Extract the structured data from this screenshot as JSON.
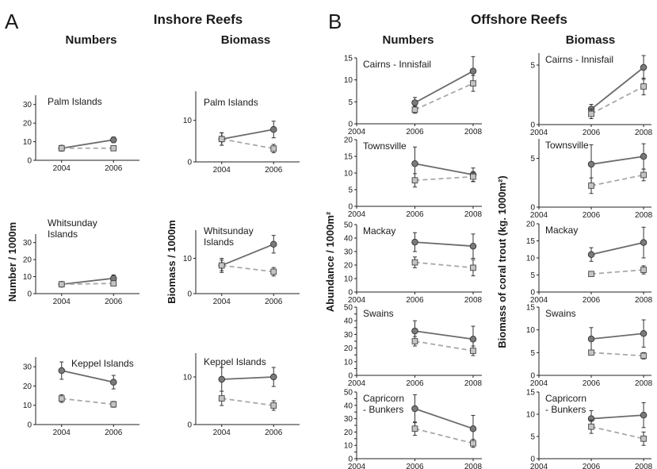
{
  "labels": {
    "panel_a": "A",
    "panel_b": "B",
    "title_a": "Inshore Reefs",
    "title_b": "Offshore Reefs",
    "col_numbers": "Numbers",
    "col_biomass": "Biomass",
    "ylabel_a_numbers": "Number / 1000m",
    "ylabel_a_biomass": "Biomass / 1000m",
    "ylabel_b_numbers": "Abundance / 1000m²",
    "ylabel_b_biomass": "Biomass of coral trout (kg. 1000m²)"
  },
  "colors": {
    "series_1": "#6b6b6b",
    "series_2": "#a8a8a8"
  },
  "chart_data": [
    {
      "type": "line",
      "panel": "A",
      "column": "Numbers",
      "region": "Palm Islands",
      "x": [
        2004,
        2006
      ],
      "ylim": [
        0,
        35
      ],
      "yticks": [
        0,
        10,
        20,
        30
      ],
      "series": [
        {
          "values": [
            6.5,
            11
          ],
          "err": [
            1.5,
            1.5
          ],
          "marker": "circle",
          "style": "solid"
        },
        {
          "values": [
            6.5,
            6.5
          ],
          "err": [
            1,
            1
          ],
          "marker": "square",
          "style": "dashed"
        }
      ]
    },
    {
      "type": "line",
      "panel": "A",
      "column": "Biomass",
      "region": "Palm Islands",
      "x": [
        2004,
        2006
      ],
      "ylim": [
        0,
        17
      ],
      "yticks": [
        0,
        10
      ],
      "series": [
        {
          "values": [
            5.5,
            7.8
          ],
          "err": [
            1.5,
            2
          ],
          "marker": "circle",
          "style": "solid"
        },
        {
          "values": [
            5.5,
            3.2
          ],
          "err": [
            1.5,
            1
          ],
          "marker": "square",
          "style": "dashed"
        }
      ]
    },
    {
      "type": "line",
      "panel": "A",
      "column": "Numbers",
      "region": "Whitsunday Islands",
      "x": [
        2004,
        2006
      ],
      "ylim": [
        0,
        35
      ],
      "yticks": [
        0,
        10,
        20,
        30
      ],
      "series": [
        {
          "values": [
            5.5,
            9
          ],
          "err": [
            1.5,
            2
          ],
          "marker": "circle",
          "style": "solid"
        },
        {
          "values": [
            5.5,
            6
          ],
          "err": [
            1.5,
            1.5
          ],
          "marker": "square",
          "style": "dashed"
        }
      ]
    },
    {
      "type": "line",
      "panel": "A",
      "column": "Biomass",
      "region": "Whitsunday Islands",
      "x": [
        2004,
        2006
      ],
      "ylim": [
        0,
        18
      ],
      "yticks": [
        0,
        10
      ],
      "series": [
        {
          "values": [
            8,
            14
          ],
          "err": [
            2,
            2.5
          ],
          "marker": "circle",
          "style": "solid"
        },
        {
          "values": [
            8,
            6.2
          ],
          "err": [
            1.5,
            1.2
          ],
          "marker": "square",
          "style": "dashed"
        }
      ]
    },
    {
      "type": "line",
      "panel": "A",
      "column": "Numbers",
      "region": "Keppel Islands",
      "x": [
        2004,
        2006
      ],
      "ylim": [
        0,
        35
      ],
      "yticks": [
        0,
        10,
        20,
        30
      ],
      "series": [
        {
          "values": [
            28,
            22
          ],
          "err": [
            4.5,
            3.5
          ],
          "marker": "circle",
          "style": "solid"
        },
        {
          "values": [
            13.5,
            10.5
          ],
          "err": [
            2,
            1.5
          ],
          "marker": "square",
          "style": "dashed"
        }
      ]
    },
    {
      "type": "line",
      "panel": "A",
      "column": "Biomass",
      "region": "Keppel Islands",
      "x": [
        2004,
        2006
      ],
      "ylim": [
        0,
        15
      ],
      "yticks": [
        0,
        10
      ],
      "series": [
        {
          "values": [
            9.5,
            10
          ],
          "err": [
            2.5,
            2
          ],
          "marker": "circle",
          "style": "solid"
        },
        {
          "values": [
            5.5,
            4
          ],
          "err": [
            1.5,
            1
          ],
          "marker": "square",
          "style": "dashed"
        }
      ]
    },
    {
      "type": "line",
      "panel": "B",
      "column": "Numbers",
      "region": "Cairns - Innisfail",
      "x": [
        2006,
        2008
      ],
      "xticks": [
        2004,
        2006,
        2008
      ],
      "ylim": [
        0,
        15
      ],
      "yticks": [
        0,
        5,
        10,
        15
      ],
      "series": [
        {
          "values": [
            4.8,
            12
          ],
          "err": [
            1.2,
            3.3
          ],
          "marker": "circle",
          "style": "solid"
        },
        {
          "values": [
            3.2,
            9.2
          ],
          "err": [
            0.8,
            1.8
          ],
          "marker": "square",
          "style": "dashed"
        }
      ]
    },
    {
      "type": "line",
      "panel": "B",
      "column": "Biomass",
      "region": "Cairns - Innisfail",
      "x": [
        2006,
        2008
      ],
      "xticks": [
        2004,
        2006,
        2008
      ],
      "ylim": [
        0,
        6
      ],
      "yticks": [
        0,
        5
      ],
      "series": [
        {
          "values": [
            1.3,
            4.8
          ],
          "err": [
            0.4,
            1
          ],
          "marker": "circle",
          "style": "solid"
        },
        {
          "values": [
            0.9,
            3.2
          ],
          "err": [
            0.4,
            0.7
          ],
          "marker": "square",
          "style": "dashed"
        }
      ]
    },
    {
      "type": "line",
      "panel": "B",
      "column": "Numbers",
      "region": "Townsville",
      "x": [
        2006,
        2008
      ],
      "xticks": [
        2004,
        2006,
        2008
      ],
      "ylim": [
        0,
        20
      ],
      "yticks": [
        0,
        5,
        10,
        15,
        20
      ],
      "series": [
        {
          "values": [
            12.8,
            9.5
          ],
          "err": [
            5,
            2
          ],
          "marker": "circle",
          "style": "solid"
        },
        {
          "values": [
            7.8,
            8.9
          ],
          "err": [
            2,
            1.5
          ],
          "marker": "square",
          "style": "dashed"
        }
      ]
    },
    {
      "type": "line",
      "panel": "B",
      "column": "Biomass",
      "region": "Townsville",
      "x": [
        2006,
        2008
      ],
      "xticks": [
        2004,
        2006,
        2008
      ],
      "ylim": [
        0,
        7
      ],
      "yticks": [
        0,
        5
      ],
      "series": [
        {
          "values": [
            4.4,
            5.2
          ],
          "err": [
            2,
            1.3
          ],
          "marker": "circle",
          "style": "solid"
        },
        {
          "values": [
            2.2,
            3.3
          ],
          "err": [
            0.8,
            0.6
          ],
          "marker": "square",
          "style": "dashed"
        }
      ]
    },
    {
      "type": "line",
      "panel": "B",
      "column": "Numbers",
      "region": "Mackay",
      "x": [
        2006,
        2008
      ],
      "xticks": [
        2004,
        2006,
        2008
      ],
      "ylim": [
        0,
        50
      ],
      "yticks": [
        0,
        10,
        20,
        30,
        40,
        50
      ],
      "series": [
        {
          "values": [
            37,
            34
          ],
          "err": [
            7,
            9
          ],
          "marker": "circle",
          "style": "solid"
        },
        {
          "values": [
            22,
            18
          ],
          "err": [
            4,
            6
          ],
          "marker": "square",
          "style": "dashed"
        }
      ]
    },
    {
      "type": "line",
      "panel": "B",
      "column": "Biomass",
      "region": "Mackay",
      "x": [
        2006,
        2008
      ],
      "xticks": [
        2004,
        2006,
        2008
      ],
      "ylim": [
        0,
        20
      ],
      "yticks": [
        0,
        5,
        10,
        15,
        20
      ],
      "series": [
        {
          "values": [
            11,
            14.5
          ],
          "err": [
            2,
            4.5
          ],
          "marker": "circle",
          "style": "solid"
        },
        {
          "values": [
            5.3,
            6.5
          ],
          "err": [
            0.5,
            1.2
          ],
          "marker": "square",
          "style": "dashed"
        }
      ]
    },
    {
      "type": "line",
      "panel": "B",
      "column": "Numbers",
      "region": "Swains",
      "x": [
        2006,
        2008
      ],
      "xticks": [
        2004,
        2006,
        2008
      ],
      "ylim": [
        0,
        50
      ],
      "yticks": [
        0,
        5,
        10,
        15,
        20,
        25,
        30,
        35,
        40,
        45,
        50
      ],
      "series": [
        {
          "values": [
            32.5,
            26.5
          ],
          "err": [
            7.5,
            9.5
          ],
          "marker": "circle",
          "style": "solid"
        },
        {
          "values": [
            25,
            18
          ],
          "err": [
            3.5,
            3.5
          ],
          "marker": "square",
          "style": "dashed"
        }
      ]
    },
    {
      "type": "line",
      "panel": "B",
      "column": "Biomass",
      "region": "Swains",
      "x": [
        2006,
        2008
      ],
      "xticks": [
        2004,
        2006,
        2008
      ],
      "ylim": [
        0,
        15
      ],
      "yticks": [
        0,
        5,
        10,
        15
      ],
      "series": [
        {
          "values": [
            8,
            9.2
          ],
          "err": [
            2.5,
            3
          ],
          "marker": "circle",
          "style": "solid"
        },
        {
          "values": [
            5,
            4.3
          ],
          "err": [
            0.5,
            0.7
          ],
          "marker": "square",
          "style": "dashed"
        }
      ]
    },
    {
      "type": "line",
      "panel": "B",
      "column": "Numbers",
      "region": "Capricorn - Bunkers",
      "x": [
        2006,
        2008
      ],
      "xticks": [
        2004,
        2006,
        2008
      ],
      "ylim": [
        0,
        50
      ],
      "yticks": [
        0,
        5,
        10,
        15,
        20,
        25,
        30,
        35,
        40,
        45,
        50
      ],
      "series": [
        {
          "values": [
            37.5,
            22.5
          ],
          "err": [
            10.5,
            10
          ],
          "marker": "circle",
          "style": "solid"
        },
        {
          "values": [
            22.5,
            11.5
          ],
          "err": [
            5,
            3
          ],
          " marker": "square",
          "marker": "square",
          "style": "dashed"
        }
      ]
    },
    {
      "type": "line",
      "panel": "B",
      "column": "Biomass",
      "region": "Capricorn - Bunkers",
      "x": [
        2006,
        2008
      ],
      "xticks": [
        2004,
        2006,
        2008
      ],
      "ylim": [
        0,
        15
      ],
      "yticks": [
        0,
        5,
        10,
        15
      ],
      "series": [
        {
          "values": [
            9,
            9.8
          ],
          "err": [
            1.8,
            2.8
          ],
          "marker": "circle",
          "style": "solid"
        },
        {
          "values": [
            7.2,
            4.5
          ],
          "err": [
            1.5,
            1.5
          ],
          "marker": "square",
          "style": "dashed"
        }
      ]
    }
  ]
}
